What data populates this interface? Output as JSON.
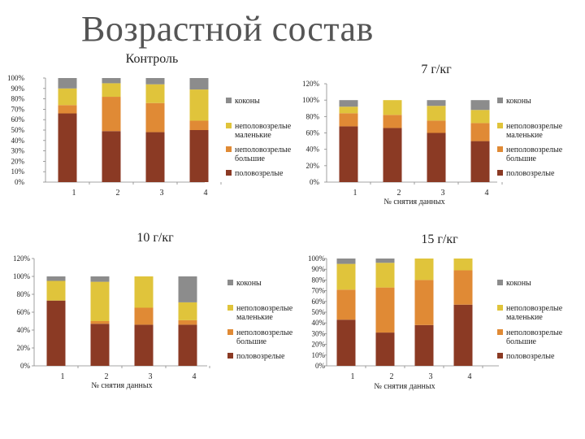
{
  "slide_title": "Возрастной состав",
  "colors": {
    "половозрелые": "#8b3a24",
    "неполовозрелые большие": "#e08a35",
    "неполовозрелые маленькие": "#e0c43b",
    "коконы": "#8c8c8c"
  },
  "chart_data": [
    {
      "type": "bar",
      "stacked": true,
      "title": "Контроль",
      "xlabel": "",
      "ylabel": "",
      "categories": [
        "1",
        "2",
        "3",
        "4"
      ],
      "y_ticks": [
        "0%",
        "10%",
        "20%",
        "30%",
        "40%",
        "50%",
        "60%",
        "70%",
        "80%",
        "90%",
        "100%"
      ],
      "ylim": [
        0,
        100
      ],
      "grid": false,
      "legend_position": "right",
      "series": [
        {
          "name": "половозрелые",
          "values": [
            66,
            49,
            48,
            50
          ]
        },
        {
          "name": "неполовозрелые большие",
          "values": [
            8,
            33,
            28,
            9
          ]
        },
        {
          "name": "неполовозрелые маленькие",
          "values": [
            16,
            13,
            18,
            30
          ]
        },
        {
          "name": "коконы",
          "values": [
            10,
            5,
            6,
            11
          ]
        }
      ],
      "legend_order": [
        "коконы",
        "неполовозрелые маленькие",
        "неполовозрелые большие",
        "половозрелые"
      ]
    },
    {
      "type": "bar",
      "stacked": true,
      "title": "7 г/кг",
      "xlabel": "№ снятия данных",
      "ylabel": "",
      "categories": [
        "1",
        "2",
        "3",
        "4"
      ],
      "y_ticks": [
        "0%",
        "20%",
        "40%",
        "60%",
        "80%",
        "100%",
        "120%"
      ],
      "ylim": [
        0,
        120
      ],
      "grid": false,
      "legend_position": "right",
      "series": [
        {
          "name": "половозрелые",
          "values": [
            68,
            66,
            60,
            50
          ]
        },
        {
          "name": "неполовозрелые большие",
          "values": [
            16,
            16,
            15,
            22
          ]
        },
        {
          "name": "неполовозрелые маленькие",
          "values": [
            8,
            18,
            18,
            16
          ]
        },
        {
          "name": "коконы",
          "values": [
            8,
            0,
            7,
            12
          ]
        }
      ],
      "legend_order": [
        "коконы",
        "неполовозрелые маленькие",
        "неполовозрелые большие",
        "половозрелые"
      ]
    },
    {
      "type": "bar",
      "stacked": true,
      "title": "10 г/кг",
      "xlabel": "№ снятия данных",
      "ylabel": "",
      "categories": [
        "1",
        "2",
        "3",
        "4"
      ],
      "y_ticks": [
        "0%",
        "20%",
        "40%",
        "60%",
        "80%",
        "100%",
        "120%"
      ],
      "ylim": [
        0,
        120
      ],
      "grid": false,
      "legend_position": "right",
      "series": [
        {
          "name": "половозрелые",
          "values": [
            73,
            47,
            46,
            46
          ]
        },
        {
          "name": "неполовозрелые большие",
          "values": [
            0,
            3,
            19,
            5
          ]
        },
        {
          "name": "неполовозрелые маленькие",
          "values": [
            22,
            44,
            35,
            20
          ]
        },
        {
          "name": "коконы",
          "values": [
            5,
            6,
            0,
            29
          ]
        }
      ],
      "legend_order": [
        "коконы",
        "неполовозрелые маленькие",
        "неполовозрелые большие",
        "половозрелые"
      ]
    },
    {
      "type": "bar",
      "stacked": true,
      "title": "15 г/кг",
      "xlabel": "№ снятия данных",
      "ylabel": "",
      "categories": [
        "1",
        "2",
        "3",
        "4"
      ],
      "y_ticks": [
        "0%",
        "10%",
        "20%",
        "30%",
        "40%",
        "50%",
        "60%",
        "70%",
        "80%",
        "90%",
        "100%"
      ],
      "ylim": [
        0,
        100
      ],
      "grid": false,
      "legend_position": "right",
      "series": [
        {
          "name": "половозрелые",
          "values": [
            43,
            31,
            38,
            57
          ]
        },
        {
          "name": "неполовозрелые большие",
          "values": [
            28,
            42,
            42,
            32
          ]
        },
        {
          "name": "неполовозрелые маленькие",
          "values": [
            24,
            23,
            20,
            11
          ]
        },
        {
          "name": "коконы",
          "values": [
            5,
            4,
            0,
            0
          ]
        }
      ],
      "legend_order": [
        "коконы",
        "неполовозрелые маленькие",
        "неполовозрелые большие",
        "половозрелые"
      ]
    }
  ]
}
